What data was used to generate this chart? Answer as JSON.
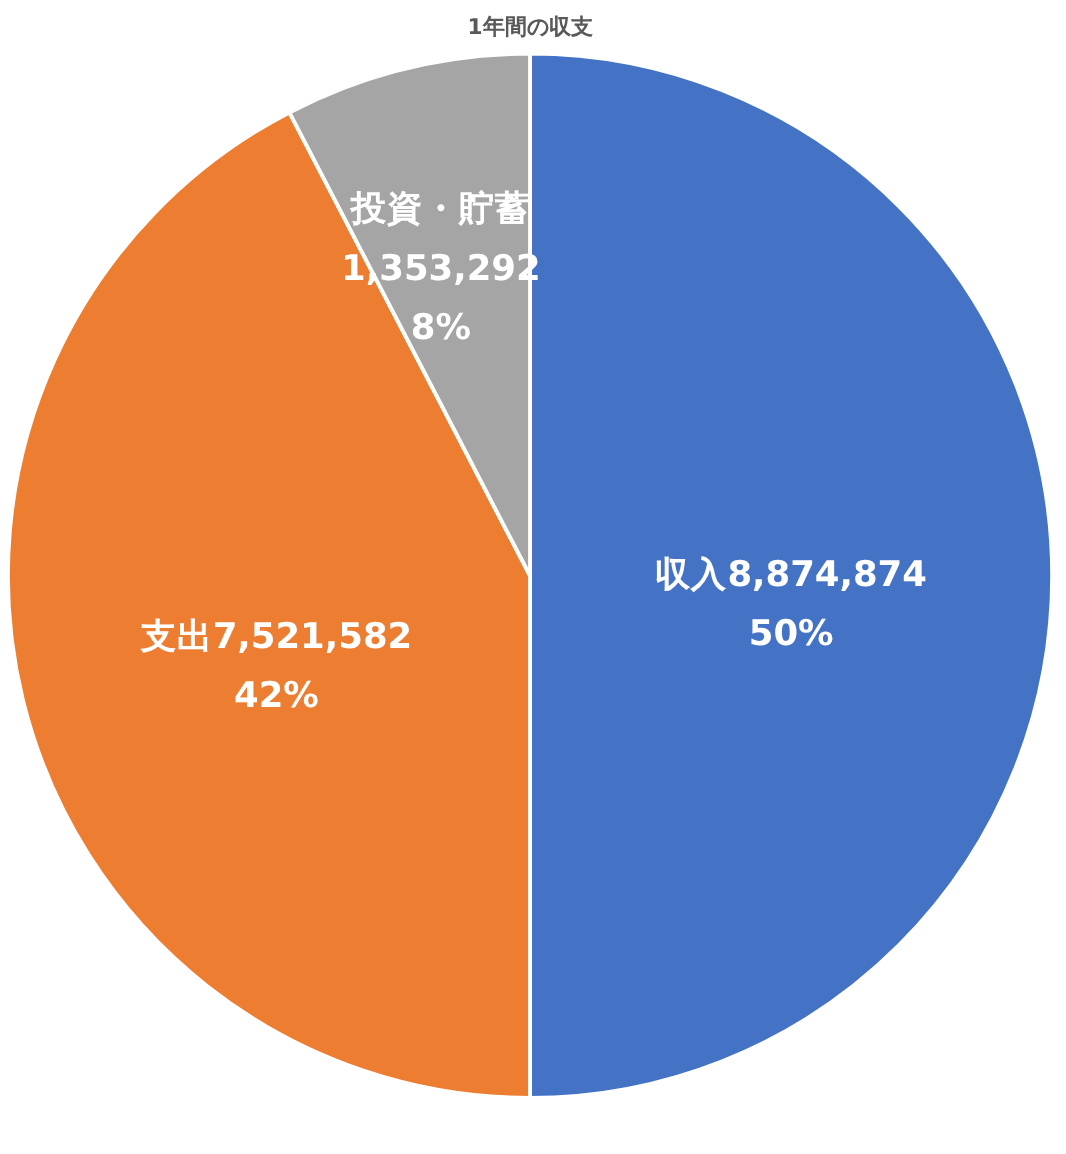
{
  "chart_data": {
    "type": "pie",
    "title": "1年間の収支",
    "categories": [
      "収入",
      "支出",
      "投資・貯蓄"
    ],
    "values": [
      8874874,
      7521582,
      1353292
    ],
    "colors": [
      "#4472c4",
      "#ed7d31",
      "#a5a5a5"
    ],
    "value_labels": [
      "8,874,874\n50%",
      "7,521,582\n42%",
      "1,353,292\n8%"
    ],
    "legend": false
  }
}
